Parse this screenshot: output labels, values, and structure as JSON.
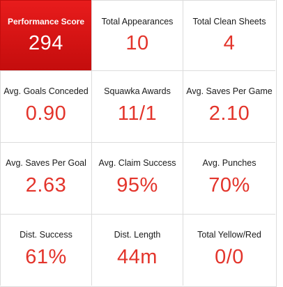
{
  "stats": [
    {
      "label": "Performance Score",
      "value": "294"
    },
    {
      "label": "Total Appearances",
      "value": "10"
    },
    {
      "label": "Total Clean Sheets",
      "value": "4"
    },
    {
      "label": "Avg. Goals Conceded",
      "value": "0.90"
    },
    {
      "label": "Squawka Awards",
      "value": "11/1"
    },
    {
      "label": "Avg. Saves Per Game",
      "value": "2.10"
    },
    {
      "label": "Avg. Saves Per Goal",
      "value": "2.63"
    },
    {
      "label": "Avg. Claim Success",
      "value": "95%"
    },
    {
      "label": "Avg. Punches",
      "value": "70%"
    },
    {
      "label": "Dist. Success",
      "value": "61%"
    },
    {
      "label": "Dist. Length",
      "value": "44m"
    },
    {
      "label": "Total Yellow/Red",
      "value": "0/0"
    }
  ],
  "colors": {
    "highlight": "#d41414",
    "value_text": "#e3342b",
    "label_text": "#1a1a1a",
    "border": "#dcdcdc"
  }
}
